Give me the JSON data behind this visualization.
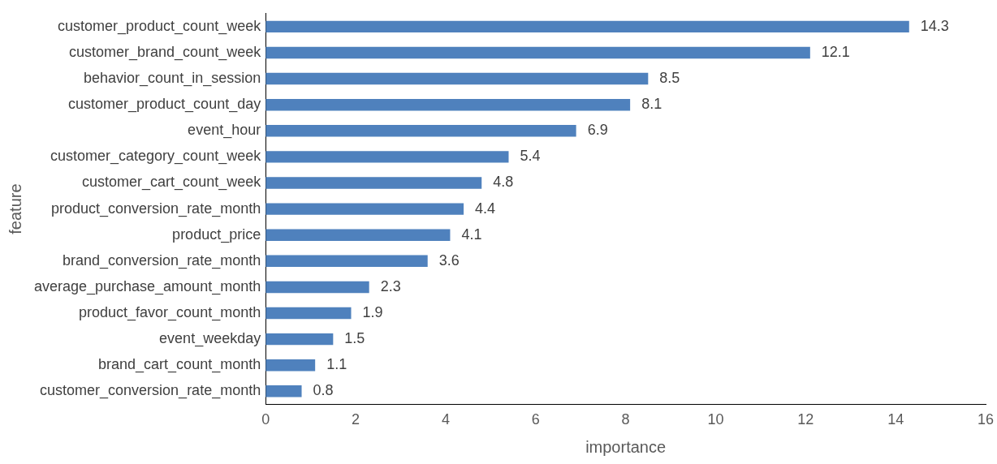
{
  "chart_data": {
    "type": "bar",
    "orientation": "horizontal",
    "xlabel": "importance",
    "ylabel": "feature",
    "categories": [
      "customer_product_count_week",
      "customer_brand_count_week",
      "behavior_count_in_session",
      "customer_product_count_day",
      "event_hour",
      "customer_category_count_week",
      "customer_cart_count_week",
      "product_conversion_rate_month",
      "product_price",
      "brand_conversion_rate_month",
      "average_purchase_amount_month",
      "product_favor_count_month",
      "event_weekday",
      "brand_cart_count_month",
      "customer_conversion_rate_month"
    ],
    "values": [
      14.3,
      12.1,
      8.5,
      8.1,
      6.9,
      5.4,
      4.8,
      4.4,
      4.1,
      3.6,
      2.3,
      1.9,
      1.5,
      1.1,
      0.8
    ],
    "color": "#4f81bd",
    "xlim": [
      0,
      16
    ],
    "xticks": [
      0,
      2,
      4,
      6,
      8,
      10,
      12,
      14,
      16
    ],
    "grid": false,
    "legend": false,
    "data_labels": true
  }
}
